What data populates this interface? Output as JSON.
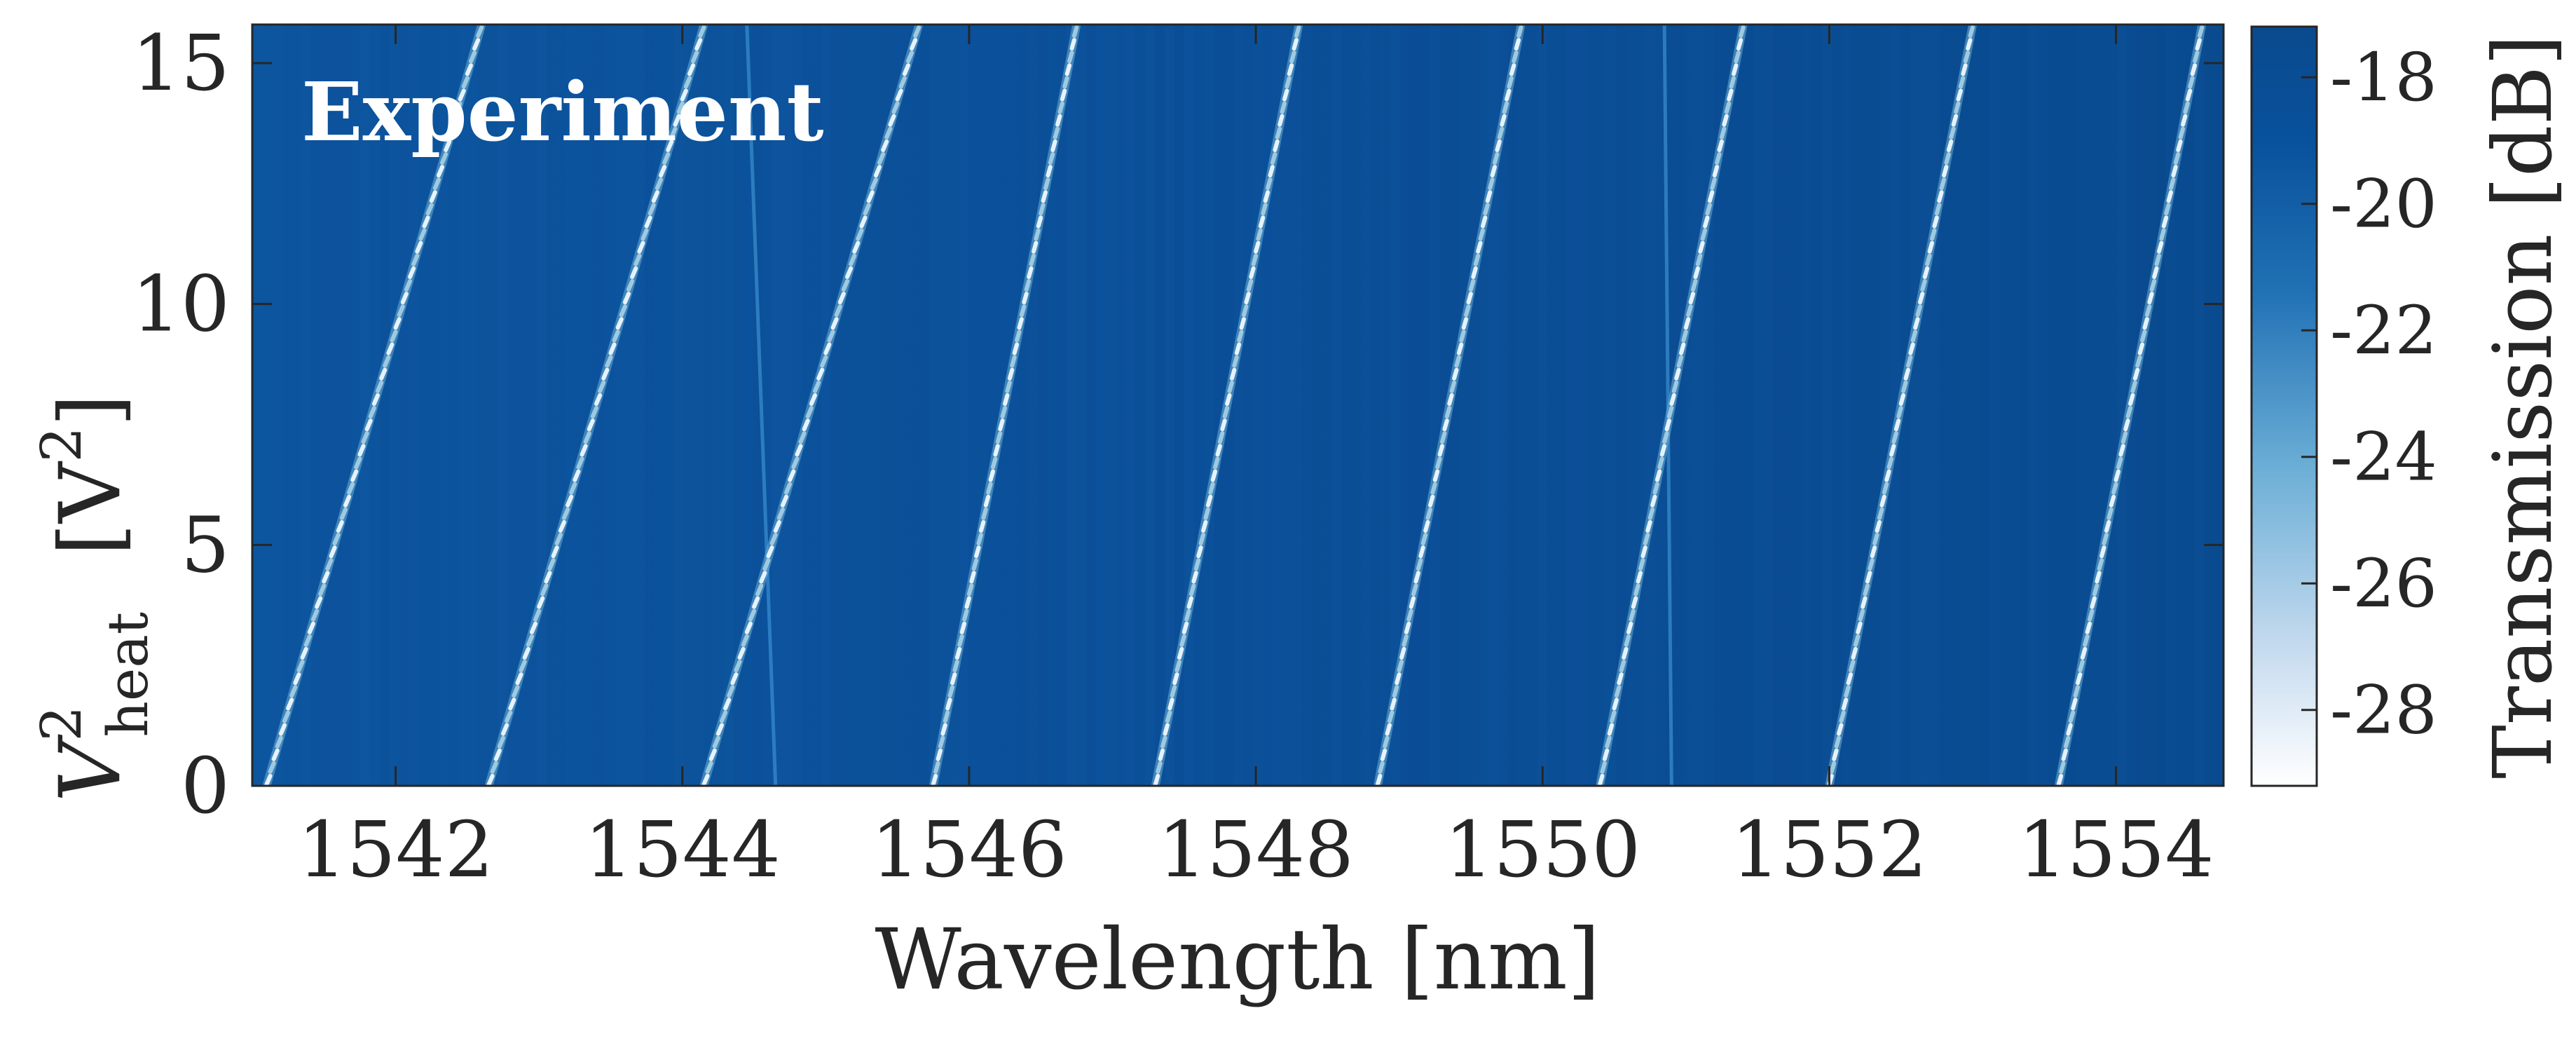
{
  "chart_data": {
    "type": "heatmap",
    "annotation": "Experiment",
    "xlabel": "Wavelength [nm]",
    "ylabel_main": "V",
    "ylabel_sup": "2",
    "ylabel_sub": "heat",
    "ylabel_unit": "[V",
    "ylabel_unit_sup": "2",
    "ylabel_unit_close": "]",
    "colorbar_label": "Transmission [dB]",
    "xlim": [
      1541.0,
      1554.75
    ],
    "ylim": [
      0,
      15.8
    ],
    "x_ticks": [
      1542,
      1544,
      1546,
      1548,
      1550,
      1552,
      1554
    ],
    "y_ticks": [
      0,
      5,
      10,
      15
    ],
    "colorbar_range": [
      -29.2,
      -17.2
    ],
    "colorbar_ticks": [
      "-18",
      "-20",
      "-22",
      "-24",
      "-26",
      "-28"
    ],
    "colorbar_tick_values": [
      -18,
      -20,
      -22,
      -24,
      -26,
      -28
    ],
    "colormap": [
      "#ffffff",
      "#c6dbef",
      "#6baed6",
      "#2171b5",
      "#08519c",
      "#0a4a8e"
    ],
    "background_level_dB": -18.5,
    "resonance_level_dB": -28,
    "resonances": [
      {
        "lambda_at_0": 1541.1,
        "lambda_at_15.8": 1542.6
      },
      {
        "lambda_at_0": 1542.65,
        "lambda_at_15.8": 1544.15
      },
      {
        "lambda_at_0": 1544.15,
        "lambda_at_15.8": 1545.65
      },
      {
        "lambda_at_0": 1545.75,
        "lambda_at_15.8": 1546.75
      },
      {
        "lambda_at_0": 1547.3,
        "lambda_at_15.8": 1548.3
      },
      {
        "lambda_at_0": 1548.85,
        "lambda_at_15.8": 1549.85
      },
      {
        "lambda_at_0": 1550.4,
        "lambda_at_15.8": 1551.4
      },
      {
        "lambda_at_0": 1552.0,
        "lambda_at_15.8": 1553.0
      },
      {
        "lambda_at_0": 1553.6,
        "lambda_at_15.8": 1554.6
      }
    ],
    "faint_lines": [
      {
        "lambda_at_0": 1544.65,
        "lambda_at_15.8": 1544.45
      },
      {
        "lambda_at_0": 1550.9,
        "lambda_at_15.8": 1550.85
      }
    ]
  }
}
